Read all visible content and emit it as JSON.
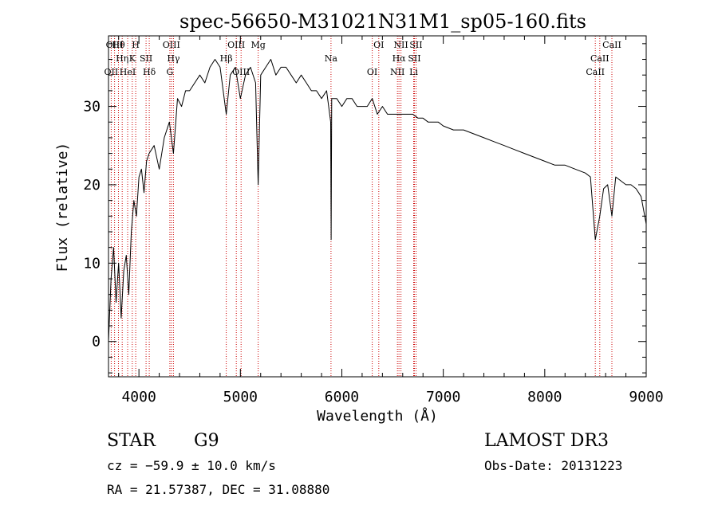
{
  "chart_data": {
    "type": "line",
    "title": "spec-56650-M31021N31M1_sp05-160.fits",
    "xlabel": "Wavelength (Å)",
    "ylabel": "Flux (relative)",
    "xlim": [
      3700,
      9000
    ],
    "ylim": [
      -4.5,
      39
    ],
    "xticks": [
      4000,
      5000,
      6000,
      7000,
      8000,
      9000
    ],
    "yticks": [
      0,
      10,
      20,
      30
    ],
    "grid": false,
    "line_color": "#000000",
    "marker_color": "#cc0000",
    "series": [
      {
        "name": "flux",
        "x": [
          3700,
          3725,
          3750,
          3775,
          3800,
          3825,
          3850,
          3875,
          3900,
          3925,
          3950,
          3975,
          4000,
          4025,
          4050,
          4075,
          4100,
          4150,
          4200,
          4250,
          4300,
          4340,
          4380,
          4420,
          4460,
          4500,
          4550,
          4600,
          4650,
          4700,
          4750,
          4800,
          4861,
          4900,
          4950,
          5000,
          5050,
          5100,
          5150,
          5175,
          5200,
          5250,
          5300,
          5350,
          5400,
          5450,
          5500,
          5550,
          5600,
          5650,
          5700,
          5750,
          5800,
          5850,
          5890,
          5895,
          5900,
          5950,
          6000,
          6050,
          6100,
          6150,
          6200,
          6250,
          6300,
          6350,
          6400,
          6450,
          6500,
          6563,
          6600,
          6650,
          6700,
          6750,
          6800,
          6850,
          6900,
          6950,
          7000,
          7100,
          7200,
          7300,
          7400,
          7500,
          7600,
          7700,
          7800,
          7900,
          8000,
          8100,
          8200,
          8300,
          8400,
          8450,
          8498,
          8542,
          8580,
          8620,
          8662,
          8700,
          8750,
          8800,
          8850,
          8900,
          8950,
          9000
        ],
        "y": [
          0,
          8,
          12,
          5,
          10,
          3,
          9,
          11,
          6,
          14,
          18,
          16,
          21,
          22,
          19,
          23,
          24,
          25,
          22,
          26,
          28,
          24,
          31,
          30,
          32,
          32,
          33,
          34,
          33,
          35,
          36,
          35,
          29,
          34,
          35,
          31,
          34,
          35,
          33,
          20,
          34,
          35,
          36,
          34,
          35,
          35,
          34,
          33,
          34,
          33,
          32,
          32,
          31,
          32,
          28,
          13,
          31,
          31,
          30,
          31,
          31,
          30,
          30,
          30,
          31,
          29,
          30,
          29,
          29,
          29,
          29,
          29,
          29,
          28.5,
          28.5,
          28,
          28,
          28,
          27.5,
          27,
          27,
          26.5,
          26,
          25.5,
          25,
          24.5,
          24,
          23.5,
          23,
          22.5,
          22.5,
          22,
          21.5,
          21,
          13,
          16,
          19.5,
          20,
          16,
          21,
          20.5,
          20,
          20,
          19.5,
          18.5,
          15
        ]
      }
    ],
    "line_markers": [
      {
        "label": "Hθ",
        "wave": 3798
      },
      {
        "label": "Hη",
        "wave": 3835
      },
      {
        "label": "OII",
        "wave": 3727
      },
      {
        "label": "OIII",
        "wave": 3760
      },
      {
        "label": "K",
        "wave": 3934
      },
      {
        "label": "HeI",
        "wave": 3889
      },
      {
        "label": "H",
        "wave": 3968
      },
      {
        "label": "SII",
        "wave": 4070
      },
      {
        "label": "Hδ",
        "wave": 4102
      },
      {
        "label": "OIII",
        "wave": 4320
      },
      {
        "label": "Hγ",
        "wave": 4340
      },
      {
        "label": "G",
        "wave": 4305
      },
      {
        "label": "OIII",
        "wave": 4960
      },
      {
        "label": "Hβ",
        "wave": 4861
      },
      {
        "label": "OIII",
        "wave": 5007
      },
      {
        "label": "Mg",
        "wave": 5175
      },
      {
        "label": "Na",
        "wave": 5893
      },
      {
        "label": "OI",
        "wave": 6300
      },
      {
        "label": "OI",
        "wave": 6364
      },
      {
        "label": "Hα",
        "wave": 6563
      },
      {
        "label": "NII",
        "wave": 6548
      },
      {
        "label": "NII",
        "wave": 6583
      },
      {
        "label": "SII",
        "wave": 6716
      },
      {
        "label": "Li",
        "wave": 6708
      },
      {
        "label": "SII",
        "wave": 6731
      },
      {
        "label": "CaII",
        "wave": 8542
      },
      {
        "label": "CaII",
        "wave": 8498
      },
      {
        "label": "CaII",
        "wave": 8662
      }
    ]
  },
  "info": {
    "object_class": "STAR",
    "subclass": "G9",
    "survey": "LAMOST DR3",
    "cz": "cz = −59.9 ± 10.0 km/s",
    "obs_date": "Obs-Date: 20131223",
    "coords": "RA =  21.57387, DEC =  31.08880"
  }
}
